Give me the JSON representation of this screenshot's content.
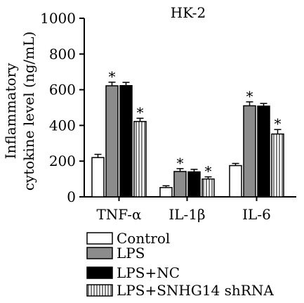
{
  "chart_data": {
    "type": "bar",
    "title": "HK-2",
    "ylabel_line1": "Inflammatory",
    "ylabel_line2": "cytokine level (ng/mL)",
    "xlabel": "",
    "ylim": [
      0,
      1000
    ],
    "yticks": [
      "0",
      "200",
      "400",
      "600",
      "800",
      "1000"
    ],
    "categories": [
      "TNF-α",
      "IL-1β",
      "IL-6"
    ],
    "series": [
      {
        "name": "Control",
        "values": [
          220,
          52,
          175
        ],
        "errors": [
          18,
          10,
          12
        ],
        "sig": [
          false,
          false,
          false
        ],
        "fill": "#ffffff",
        "pattern": "none"
      },
      {
        "name": "LPS",
        "values": [
          622,
          142,
          510
        ],
        "errors": [
          20,
          16,
          22
        ],
        "sig": [
          true,
          true,
          true
        ],
        "fill": "#8c8c8c",
        "pattern": "none"
      },
      {
        "name": "LPS+NC",
        "values": [
          623,
          140,
          508
        ],
        "errors": [
          18,
          14,
          15
        ],
        "sig": [
          false,
          false,
          false
        ],
        "fill": "#000000",
        "pattern": "none"
      },
      {
        "name": "LPS+SNHG14 shRNA",
        "values": [
          422,
          100,
          352
        ],
        "errors": [
          18,
          12,
          25
        ],
        "sig": [
          true,
          true,
          true
        ],
        "fill": "#ffffff",
        "pattern": "vertical-stripes"
      }
    ],
    "significance_marker": "*",
    "grid": false,
    "legend_position": "bottom"
  }
}
